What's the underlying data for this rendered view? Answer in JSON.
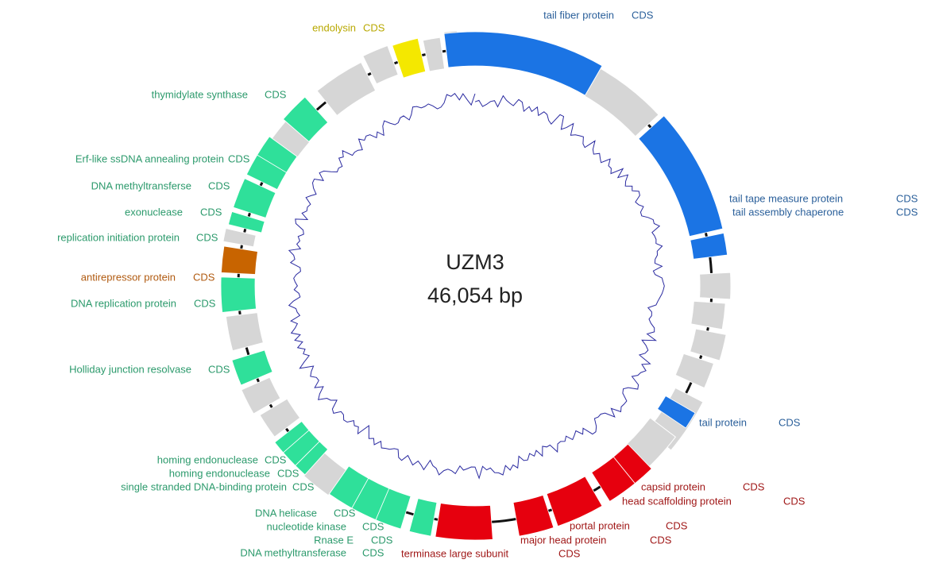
{
  "center": {
    "name": "UZM3",
    "length": "46,054 bp"
  },
  "features": [
    {
      "label": "endolysin",
      "type": "CDS"
    },
    {
      "label": "tail fiber protein",
      "type": "CDS"
    },
    {
      "label": "thymidylate synthase",
      "type": "CDS"
    },
    {
      "label": "Erf-like ssDNA annealing protein",
      "type": "CDS"
    },
    {
      "label": "DNA methyltransferse",
      "type": "CDS"
    },
    {
      "label": "exonuclease",
      "type": "CDS"
    },
    {
      "label": "replication initiation protein",
      "type": "CDS"
    },
    {
      "label": "antirepressor protein",
      "type": "CDS"
    },
    {
      "label": "DNA replication protein",
      "type": "CDS"
    },
    {
      "label": "Holliday junction resolvase",
      "type": "CDS"
    },
    {
      "label": "tail tape measure protein",
      "type": "CDS"
    },
    {
      "label": "tail assembly chaperone",
      "type": "CDS"
    },
    {
      "label": "tail protein",
      "type": "CDS"
    },
    {
      "label": "capsid protein",
      "type": "CDS"
    },
    {
      "label": "head scaffolding protein",
      "type": "CDS"
    },
    {
      "label": "portal protein",
      "type": "CDS"
    },
    {
      "label": "major head protein",
      "type": "CDS"
    },
    {
      "label": "terminase large subunit",
      "type": "CDS"
    },
    {
      "label": "homing endonuclease",
      "type": "CDS"
    },
    {
      "label": "homing endonuclease",
      "type": "CDS"
    },
    {
      "label": "single stranded DNA-binding protein",
      "type": "CDS"
    },
    {
      "label": "DNA helicase",
      "type": "CDS"
    },
    {
      "label": "nucleotide kinase",
      "type": "CDS"
    },
    {
      "label": "Rnase E",
      "type": "CDS"
    },
    {
      "label": "DNA methyltransferase",
      "type": "CDS"
    }
  ]
}
